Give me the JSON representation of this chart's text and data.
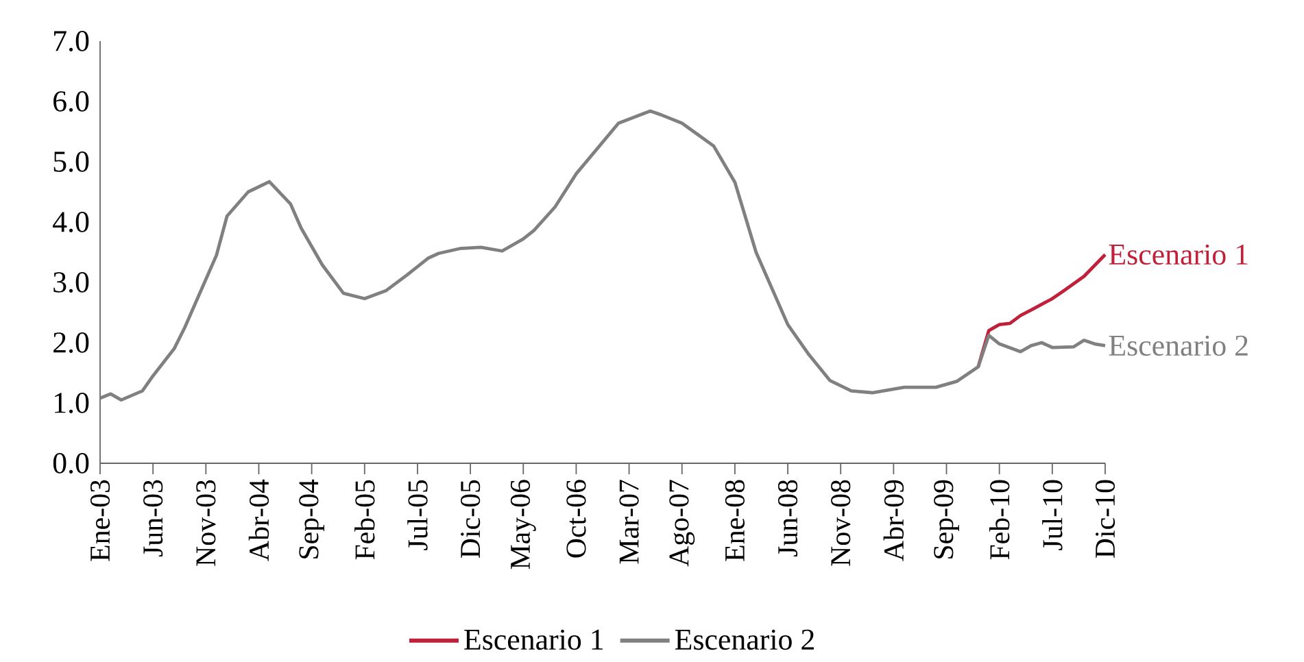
{
  "chart_data": {
    "type": "line",
    "xlim": [
      "2003-01",
      "2010-12"
    ],
    "xticks": [
      {
        "value": "2003-01",
        "label": "Ene-03"
      },
      {
        "value": "2003-06",
        "label": "Jun-03"
      },
      {
        "value": "2003-11",
        "label": "Nov-03"
      },
      {
        "value": "2004-04",
        "label": "Abr-04"
      },
      {
        "value": "2004-09",
        "label": "Sep-04"
      },
      {
        "value": "2005-02",
        "label": "Feb-05"
      },
      {
        "value": "2005-07",
        "label": "Jul-05"
      },
      {
        "value": "2005-12",
        "label": "Dic-05"
      },
      {
        "value": "2006-05",
        "label": "May-06"
      },
      {
        "value": "2006-10",
        "label": "Oct-06"
      },
      {
        "value": "2007-03",
        "label": "Mar-07"
      },
      {
        "value": "2007-08",
        "label": "Ago-07"
      },
      {
        "value": "2008-01",
        "label": "Ene-08"
      },
      {
        "value": "2008-06",
        "label": "Jun-08"
      },
      {
        "value": "2008-11",
        "label": "Nov-08"
      },
      {
        "value": "2009-04",
        "label": "Abr-09"
      },
      {
        "value": "2009-09",
        "label": "Sep-09"
      },
      {
        "value": "2010-02",
        "label": "Feb-10"
      },
      {
        "value": "2010-07",
        "label": "Jul-10"
      },
      {
        "value": "2010-12",
        "label": "Dic-10"
      }
    ],
    "ylim": [
      0,
      7
    ],
    "yticks": [
      {
        "value": 0,
        "label": "0.0"
      },
      {
        "value": 1,
        "label": "1.0"
      },
      {
        "value": 2,
        "label": "2.0"
      },
      {
        "value": 3,
        "label": "3.0"
      },
      {
        "value": 4,
        "label": "4.0"
      },
      {
        "value": 5,
        "label": "5.0"
      },
      {
        "value": 6,
        "label": "6.0"
      },
      {
        "value": 7,
        "label": "7.0"
      }
    ],
    "legend": "bottom",
    "series": [
      {
        "name": "Escenario 1",
        "color": "#c0203a",
        "x": [
          "2009-12",
          "2010-01",
          "2010-02",
          "2010-03",
          "2010-04",
          "2010-05",
          "2010-07",
          "2010-08",
          "2010-10",
          "2010-12"
        ],
        "values": [
          1.6,
          2.2,
          2.3,
          2.32,
          2.45,
          2.54,
          2.73,
          2.85,
          3.1,
          3.46
        ]
      },
      {
        "name": "Escenario 2",
        "color": "#808080",
        "x": [
          "2003-01",
          "2003-02",
          "2003-03",
          "2003-05",
          "2003-06",
          "2003-08",
          "2003-09",
          "2003-10",
          "2003-12",
          "2004-01",
          "2004-03",
          "2004-05",
          "2004-07",
          "2004-08",
          "2004-10",
          "2004-12",
          "2005-02",
          "2005-04",
          "2005-06",
          "2005-08",
          "2005-09",
          "2005-11",
          "2006-01",
          "2006-03",
          "2006-05",
          "2006-06",
          "2006-08",
          "2006-10",
          "2007-02",
          "2007-05",
          "2007-06",
          "2007-08",
          "2007-11",
          "2008-01",
          "2008-03",
          "2008-06",
          "2008-08",
          "2008-10",
          "2008-12",
          "2009-02",
          "2009-05",
          "2009-08",
          "2009-10",
          "2009-12",
          "2010-01",
          "2010-02",
          "2010-04",
          "2010-05",
          "2010-06",
          "2010-07",
          "2010-09",
          "2010-10",
          "2010-11",
          "2010-12"
        ],
        "values": [
          1.08,
          1.15,
          1.05,
          1.2,
          1.45,
          1.9,
          2.25,
          2.65,
          3.45,
          4.1,
          4.5,
          4.67,
          4.3,
          3.9,
          3.29,
          2.82,
          2.73,
          2.86,
          3.12,
          3.4,
          3.48,
          3.56,
          3.58,
          3.52,
          3.72,
          3.86,
          4.25,
          4.8,
          5.64,
          5.84,
          5.78,
          5.64,
          5.26,
          4.66,
          3.5,
          2.3,
          1.8,
          1.37,
          1.2,
          1.17,
          1.26,
          1.26,
          1.36,
          1.6,
          2.12,
          1.98,
          1.85,
          1.95,
          2.0,
          1.92,
          1.93,
          2.04,
          1.98,
          1.95
        ]
      }
    ]
  }
}
